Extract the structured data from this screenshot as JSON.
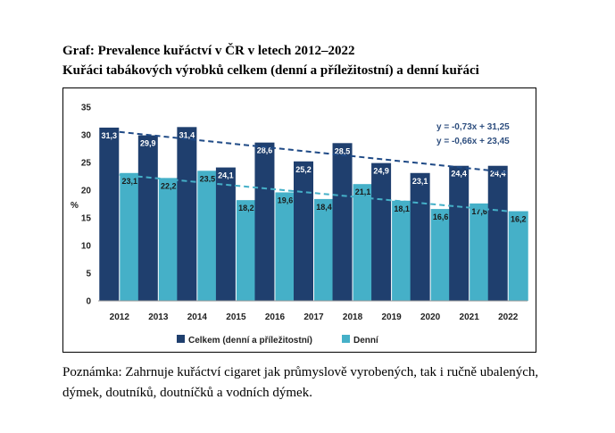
{
  "header": {
    "title": "Graf: Prevalence kuřáctví v ČR v letech 2012–2022",
    "subtitle": "Kuřáci tabákových výrobků celkem (denní a příležitostní) a denní kuřáci"
  },
  "note": {
    "line1": "Poznámka: Zahrnuje kuřáctví cigaret jak průmyslově vyrobených, tak i ručně ubalených,",
    "line2": "dýmek, doutníků, doutníčků a vodních dýmek."
  },
  "chart_data": {
    "type": "bar",
    "categories": [
      "2012",
      "2013",
      "2014",
      "2015",
      "2016",
      "2017",
      "2018",
      "2019",
      "2020",
      "2021",
      "2022"
    ],
    "series": [
      {
        "name": "Celkem (denní a příležitostní)",
        "color": "#1f3f6e",
        "values": [
          31.3,
          29.9,
          31.4,
          24.1,
          28.6,
          25.2,
          28.5,
          24.9,
          23.1,
          24.4,
          24.4
        ],
        "labels": [
          "31,3",
          "29,9",
          "31,4",
          "24,1",
          "28,6",
          "25,2",
          "28,5",
          "24,9",
          "23,1",
          "24,4",
          "24,4"
        ]
      },
      {
        "name": "Denní",
        "color": "#45b0c8",
        "values": [
          23.1,
          22.2,
          23.5,
          18.2,
          19.6,
          18.4,
          21.1,
          18.1,
          16.6,
          17.6,
          16.2
        ],
        "labels": [
          "23,1",
          "22,2",
          "23,5",
          "18,2",
          "19,6",
          "18,4",
          "21,1",
          "18,1",
          "16,6",
          "17,6",
          "16,2"
        ]
      }
    ],
    "trendlines": [
      {
        "equation": "y = -0,73x + 31,25",
        "slope": -0.73,
        "intercept": 31.25,
        "color": "#1f4a86"
      },
      {
        "equation": "y = -0,66x + 23,45",
        "slope": -0.66,
        "intercept": 23.45,
        "color": "#45b0c8"
      }
    ],
    "ylabel": "%",
    "ylim": [
      0,
      35
    ],
    "yticks": [
      "0",
      "5",
      "10",
      "15",
      "20",
      "25",
      "30",
      "35"
    ],
    "grid": false,
    "legend_position": "bottom"
  }
}
